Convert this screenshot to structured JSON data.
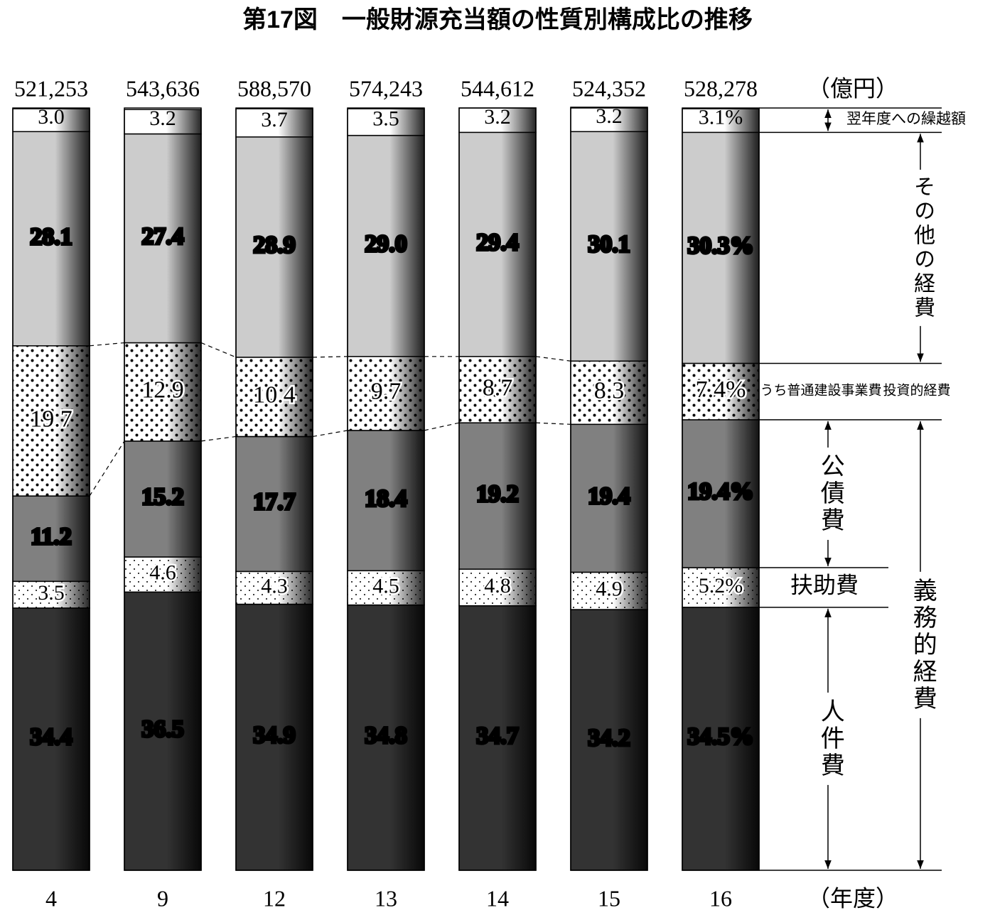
{
  "chart_data": {
    "type": "stacked_bar",
    "title": "第17図　一般財源充当額の性質別構成比の推移",
    "categories": [
      "4",
      "9",
      "12",
      "13",
      "14",
      "15",
      "16"
    ],
    "x_label": "（年度）",
    "totals": {
      "unit": "（億円）",
      "values": [
        521253,
        543636,
        588570,
        574243,
        544612,
        524352,
        528278
      ],
      "value_labels": [
        "521,253",
        "543,636",
        "588,570",
        "574,243",
        "544,612",
        "524,352",
        "528,278"
      ]
    },
    "ylim": [
      0,
      100
    ],
    "series": [
      {
        "name": "人件費",
        "color": "#333333",
        "values": [
          34.4,
          36.5,
          34.9,
          34.8,
          34.7,
          34.2,
          34.5
        ],
        "value_labels": [
          "34.4",
          "36.5",
          "34.9",
          "34.8",
          "34.7",
          "34.2",
          "34.5%"
        ]
      },
      {
        "name": "扶助費",
        "color": "#ffffff",
        "values": [
          3.5,
          4.6,
          4.3,
          4.5,
          4.8,
          4.9,
          5.2
        ],
        "value_labels": [
          "3.5",
          "4.6",
          "4.3",
          "4.5",
          "4.8",
          "4.9",
          "5.2%"
        ]
      },
      {
        "name": "公債費",
        "color": "#808080",
        "values": [
          11.2,
          15.2,
          17.7,
          18.4,
          19.2,
          19.4,
          19.4
        ],
        "value_labels": [
          "11.2",
          "15.2",
          "17.7",
          "18.4",
          "19.2",
          "19.4",
          "19.4%"
        ]
      },
      {
        "name": "投資的経費",
        "color": "#ffffff",
        "values": [
          19.7,
          12.9,
          10.4,
          9.7,
          8.7,
          8.3,
          7.4
        ],
        "value_labels": [
          "19.7",
          "12.9",
          "10.4",
          "9.7",
          "8.7",
          "8.3",
          "7.4%"
        ]
      },
      {
        "name": "その他の経費",
        "color": "#cccccc",
        "values": [
          28.1,
          27.4,
          28.9,
          29.0,
          29.4,
          30.1,
          30.3
        ],
        "value_labels": [
          "28.1",
          "27.4",
          "28.9",
          "29.0",
          "29.4",
          "30.1",
          "30.3%"
        ]
      },
      {
        "name": "翌年度への繰越額",
        "color": "#ffffff",
        "values": [
          3.0,
          3.2,
          3.7,
          3.5,
          3.2,
          3.2,
          3.1
        ],
        "value_labels": [
          "3.0",
          "3.2",
          "3.7",
          "3.5",
          "3.2",
          "3.2",
          "3.1%"
        ]
      }
    ],
    "annotations": {
      "sub_label": "うち普通建設事業費",
      "group_label": "義務的経費"
    }
  }
}
